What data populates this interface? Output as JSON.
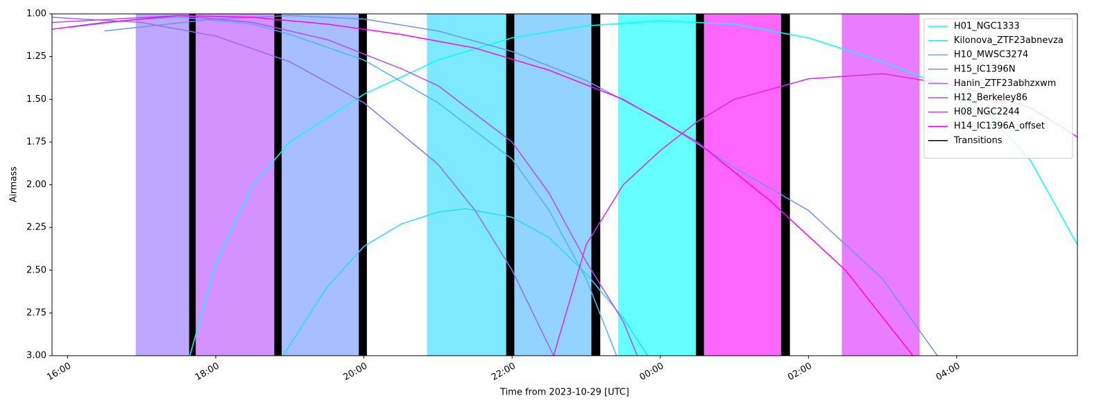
{
  "chart_data": {
    "type": "line",
    "ylabel": "Airmass",
    "xlabel": "Time from 2023-10-29 [UTC]",
    "xlim": [
      15.79,
      29.63
    ],
    "xticks": [
      {
        "value": 16,
        "label": "16:00"
      },
      {
        "value": 18,
        "label": "18:00"
      },
      {
        "value": 20,
        "label": "20:00"
      },
      {
        "value": 22,
        "label": "22:00"
      },
      {
        "value": 24,
        "label": "00:00"
      },
      {
        "value": 26,
        "label": "02:00"
      },
      {
        "value": 28,
        "label": "04:00"
      }
    ],
    "ylim": [
      3,
      1
    ],
    "yticks": [
      {
        "value": 1,
        "label": "1.00"
      },
      {
        "value": 1.25,
        "label": "1.25"
      },
      {
        "value": 1.5,
        "label": "1.50"
      },
      {
        "value": 1.75,
        "label": "1.75"
      },
      {
        "value": 2,
        "label": "2.00"
      },
      {
        "value": 2.25,
        "label": "2.25"
      },
      {
        "value": 2.5,
        "label": "2.50"
      },
      {
        "value": 2.75,
        "label": "2.75"
      },
      {
        "value": 3,
        "label": "3.00"
      }
    ],
    "legend": "upper right",
    "series": [
      {
        "name": "H01_NGC1333",
        "color": "#00ffff",
        "x": [
          17.65,
          18.0,
          18.5,
          19.0,
          20.0,
          21.0,
          22.0,
          23.0,
          24.0,
          25.0,
          26.0,
          27.0,
          28.0,
          28.5,
          29.0,
          29.63
        ],
        "values": [
          3.0,
          2.46,
          2.0,
          1.75,
          1.47,
          1.27,
          1.14,
          1.07,
          1.04,
          1.06,
          1.14,
          1.28,
          1.45,
          1.62,
          1.86,
          2.35
        ]
      },
      {
        "name": "Kilonova_ZTF23abnevza",
        "color": "#24dbff",
        "x": [
          18.91,
          19.5,
          20.0,
          20.5,
          21.0,
          21.37,
          22.0,
          22.5,
          23.0,
          23.5,
          23.83
        ],
        "values": [
          3.0,
          2.6,
          2.36,
          2.23,
          2.16,
          2.14,
          2.19,
          2.31,
          2.52,
          2.78,
          3.0
        ]
      },
      {
        "name": "H10_MWSC3274",
        "color": "#49b6ff",
        "x": [
          16.0,
          17.0,
          17.5,
          18.5,
          19.0,
          20.0,
          21.0,
          22.0,
          22.5,
          23.0,
          23.41
        ],
        "values": [
          1.08,
          1.03,
          1.02,
          1.06,
          1.12,
          1.27,
          1.52,
          1.85,
          2.15,
          2.55,
          3.0
        ]
      },
      {
        "name": "H15_IC1396N",
        "color": "#6d92ff",
        "x": [
          16.5,
          18.0,
          19.0,
          20.0,
          21.0,
          22.0,
          23.0,
          24.0,
          25.0,
          26.0,
          27.0,
          27.74
        ],
        "values": [
          1.1,
          1.03,
          1.01,
          1.03,
          1.1,
          1.22,
          1.39,
          1.62,
          1.9,
          2.15,
          2.55,
          3.0
        ]
      },
      {
        "name": "Hanin_ZTF23abhzxwm",
        "color": "#926dff",
        "x": [
          15.79,
          17.0,
          18.0,
          19.0,
          20.0,
          21.0,
          21.5,
          22.0,
          22.56
        ],
        "values": [
          1.02,
          1.05,
          1.13,
          1.28,
          1.52,
          1.88,
          2.15,
          2.5,
          3.0
        ]
      },
      {
        "name": "H12_Berkeley86",
        "color": "#b649ff",
        "x": [
          15.79,
          17.5,
          18.5,
          19.5,
          20.5,
          21.0,
          22.0,
          22.5,
          23.0,
          23.5,
          23.69
        ],
        "values": [
          1.05,
          1.01,
          1.05,
          1.15,
          1.32,
          1.42,
          1.75,
          2.05,
          2.45,
          2.8,
          3.0
        ]
      },
      {
        "name": "H08_NGC2244",
        "color": "#db24ff",
        "x": [
          22.56,
          23.0,
          23.5,
          24.0,
          24.5,
          25.0,
          26.0,
          27.0,
          28.0,
          29.0,
          29.63
        ],
        "values": [
          3.0,
          2.35,
          2.0,
          1.8,
          1.63,
          1.5,
          1.38,
          1.35,
          1.42,
          1.55,
          1.72
        ]
      },
      {
        "name": "H14_IC1396A_offset",
        "color": "#ff00ff",
        "x": [
          15.79,
          16.5,
          17.5,
          18.5,
          19.5,
          20.5,
          21.5,
          22.5,
          23.5,
          24.5,
          25.5,
          26.5,
          27.41
        ],
        "values": [
          1.09,
          1.05,
          1.01,
          1.02,
          1.06,
          1.12,
          1.2,
          1.33,
          1.5,
          1.75,
          2.1,
          2.5,
          3.0
        ]
      }
    ],
    "blocks": [
      {
        "start": 16.92,
        "end": 17.64,
        "color": "#bda7ff"
      },
      {
        "start": 17.73,
        "end": 18.79,
        "color": "#d392ff"
      },
      {
        "start": 18.89,
        "end": 19.93,
        "color": "#a7beff"
      },
      {
        "start": 20.85,
        "end": 21.92,
        "color": "#7ce9ff"
      },
      {
        "start": 22.03,
        "end": 23.07,
        "color": "#92d3ff"
      },
      {
        "start": 23.43,
        "end": 24.48,
        "color": "#66ffff"
      },
      {
        "start": 24.59,
        "end": 25.63,
        "color": "#ff66ff"
      },
      {
        "start": 26.45,
        "end": 27.5,
        "color": "#e97cff"
      }
    ],
    "transitions_name": "Transitions",
    "transitions_color": "#000000",
    "transitions": [
      {
        "start": 17.64,
        "end": 17.73
      },
      {
        "start": 18.79,
        "end": 18.89
      },
      {
        "start": 19.93,
        "end": 20.04
      },
      {
        "start": 21.92,
        "end": 22.03
      },
      {
        "start": 23.07,
        "end": 23.19
      },
      {
        "start": 24.48,
        "end": 24.59
      },
      {
        "start": 25.63,
        "end": 25.75
      }
    ]
  }
}
